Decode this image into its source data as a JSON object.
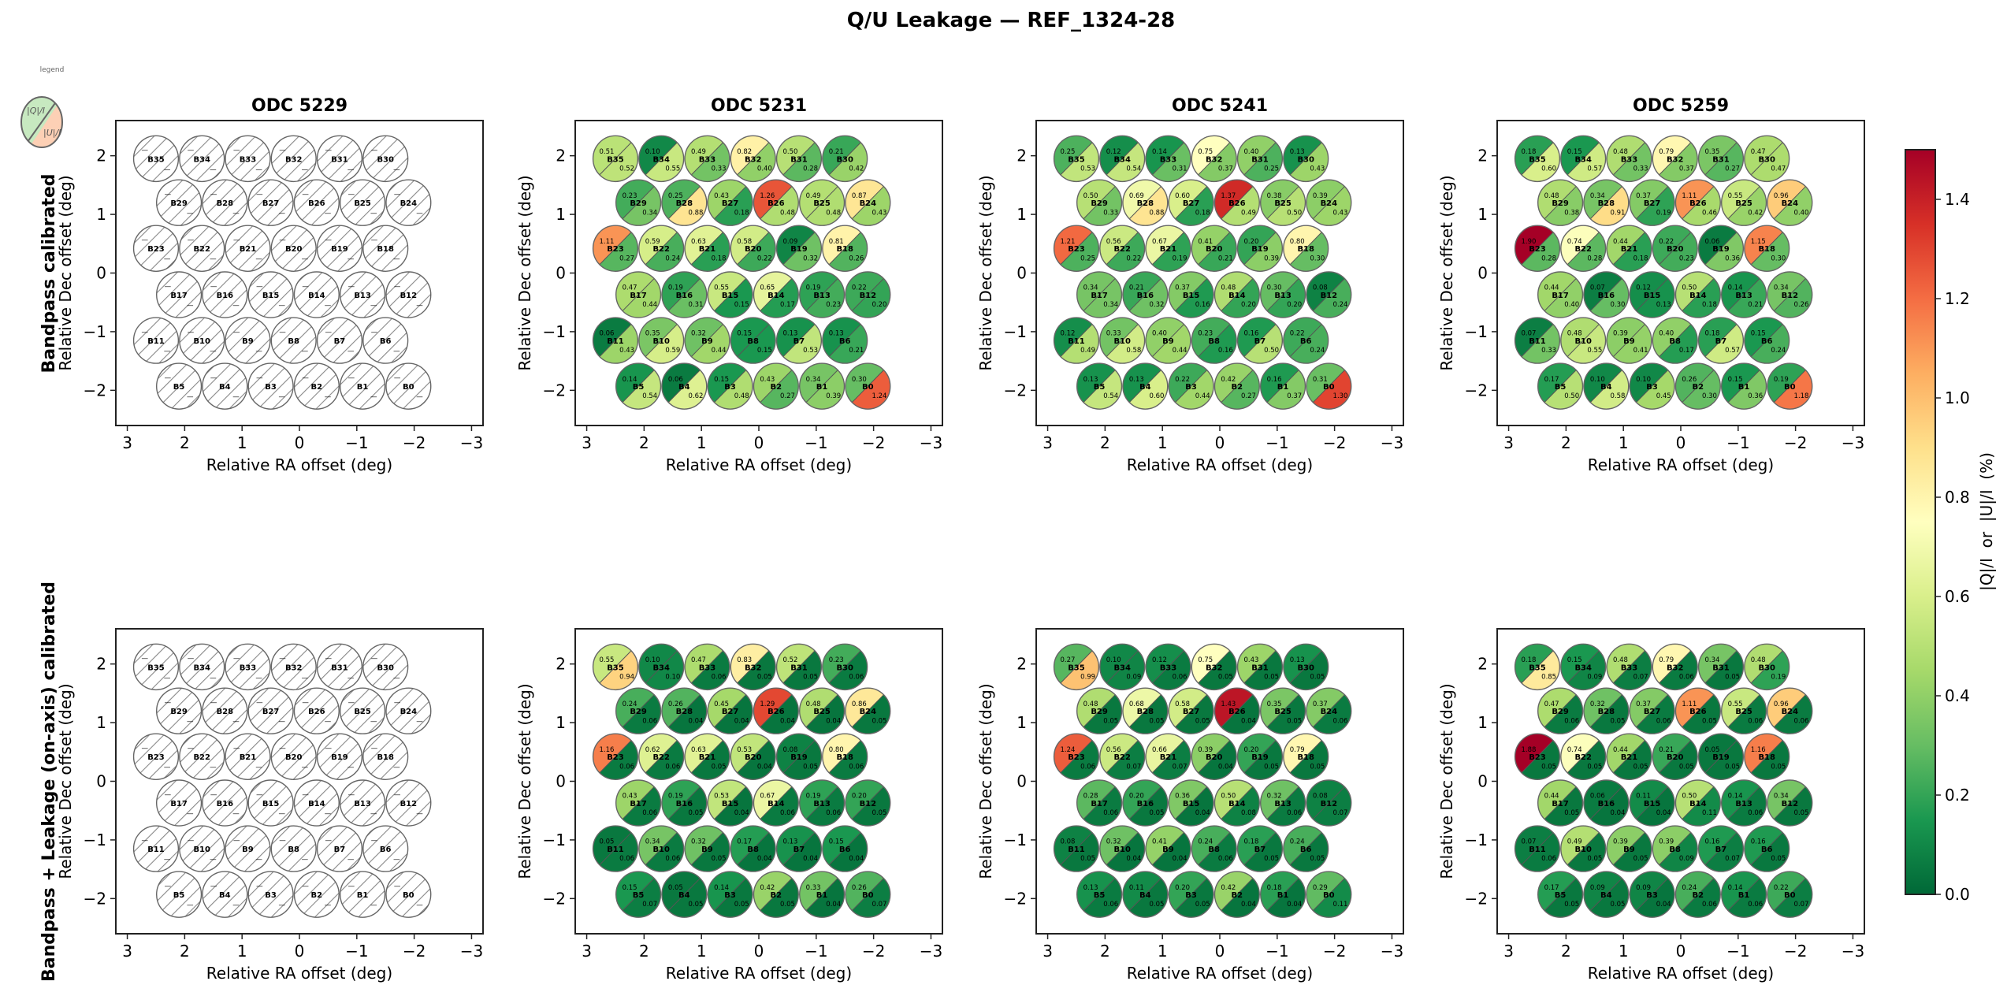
{
  "chart_data": {
    "type": "heatmap",
    "title": "Q/U Leakage — REF_1324-28",
    "xlabel": "Relative RA offset (deg)",
    "ylabel": "Relative Dec offset (deg)",
    "xlim": [
      3.2,
      -3.2
    ],
    "ylim": [
      -2.6,
      2.6
    ],
    "xticks": [
      3,
      2,
      1,
      0,
      -1,
      -2,
      -3
    ],
    "xtick_labels": [
      "3",
      "2",
      "1",
      "0",
      "−1",
      "−2",
      "−3"
    ],
    "yticks": [
      2,
      1,
      0,
      -1,
      -2
    ],
    "ytick_labels": [
      "2",
      "1",
      "0",
      "−1",
      "−2"
    ],
    "row_labels": [
      "Bandpass calibrated",
      "Bandpass + Leakage (on-axis) calibrated"
    ],
    "columns": [
      "ODC 5229",
      "ODC 5231",
      "ODC 5241",
      "ODC 5259"
    ],
    "legend": {
      "label": "legend",
      "upper": "|Q|/I",
      "lower": "|U|/I",
      "upper_color": "#c7e9c0",
      "lower_color": "#fdd0b5",
      "placement": "top-left"
    },
    "colorbar": {
      "label": "|Q|/I  or  |U|/I  (%)",
      "colormap": "RdYlGn_r",
      "range": [
        0.0,
        1.5
      ],
      "ticks": [
        0.0,
        0.2,
        0.4,
        0.6,
        0.8,
        1.0,
        1.2,
        1.4
      ],
      "tick_labels": [
        "0.0",
        "0.2",
        "0.4",
        "0.6",
        "0.8",
        "1.0",
        "1.2",
        "1.4"
      ],
      "placement": "right"
    },
    "missing_marker": "—",
    "beam_order": [
      "B35",
      "B34",
      "B33",
      "B32",
      "B31",
      "B30",
      "B29",
      "B28",
      "B27",
      "B26",
      "B25",
      "B24",
      "B23",
      "B22",
      "B21",
      "B20",
      "B19",
      "B18",
      "B17",
      "B16",
      "B15",
      "B14",
      "B13",
      "B12",
      "B11",
      "B10",
      "B9",
      "B8",
      "B7",
      "B6",
      "B5",
      "B4",
      "B3",
      "B2",
      "B1",
      "B0"
    ],
    "beam_positions": {
      "B35": [
        2.5,
        1.95
      ],
      "B34": [
        1.7,
        1.95
      ],
      "B33": [
        0.9,
        1.95
      ],
      "B32": [
        0.1,
        1.95
      ],
      "B31": [
        -0.7,
        1.95
      ],
      "B30": [
        -1.5,
        1.95
      ],
      "B29": [
        2.1,
        1.2
      ],
      "B28": [
        1.3,
        1.2
      ],
      "B27": [
        0.5,
        1.2
      ],
      "B26": [
        -0.3,
        1.2
      ],
      "B25": [
        -1.1,
        1.2
      ],
      "B24": [
        -1.9,
        1.2
      ],
      "B23": [
        2.5,
        0.42
      ],
      "B22": [
        1.7,
        0.42
      ],
      "B21": [
        0.9,
        0.42
      ],
      "B20": [
        0.1,
        0.42
      ],
      "B19": [
        -0.7,
        0.42
      ],
      "B18": [
        -1.5,
        0.42
      ],
      "B17": [
        2.1,
        -0.37
      ],
      "B16": [
        1.3,
        -0.37
      ],
      "B15": [
        0.5,
        -0.37
      ],
      "B14": [
        -0.3,
        -0.37
      ],
      "B13": [
        -1.1,
        -0.37
      ],
      "B12": [
        -1.9,
        -0.37
      ],
      "B11": [
        2.5,
        -1.15
      ],
      "B10": [
        1.7,
        -1.15
      ],
      "B9": [
        0.9,
        -1.15
      ],
      "B8": [
        0.1,
        -1.15
      ],
      "B7": [
        -0.7,
        -1.15
      ],
      "B6": [
        -1.5,
        -1.15
      ],
      "B5": [
        2.1,
        -1.93
      ],
      "B4": [
        1.3,
        -1.93
      ],
      "B3": [
        0.5,
        -1.93
      ],
      "B2": [
        -0.3,
        -1.93
      ],
      "B1": [
        -1.1,
        -1.93
      ],
      "B0": [
        -1.9,
        -1.93
      ]
    },
    "panels": [
      {
        "row": 0,
        "col": 0,
        "odc": "ODC 5229",
        "has_data": false,
        "q": null,
        "u": null
      },
      {
        "row": 0,
        "col": 1,
        "odc": "ODC 5231",
        "has_data": true,
        "q": {
          "B35": 0.51,
          "B34": 0.1,
          "B33": 0.49,
          "B32": 0.82,
          "B31": 0.5,
          "B30": 0.21,
          "B29": 0.23,
          "B28": 0.25,
          "B27": 0.43,
          "B26": 1.26,
          "B25": 0.49,
          "B24": 0.87,
          "B23": 1.11,
          "B22": 0.59,
          "B21": 0.63,
          "B20": 0.58,
          "B19": 0.09,
          "B18": 0.81,
          "B17": 0.47,
          "B16": 0.19,
          "B15": 0.55,
          "B14": 0.65,
          "B13": 0.19,
          "B12": 0.22,
          "B11": 0.06,
          "B10": 0.35,
          "B9": 0.32,
          "B8": 0.15,
          "B7": 0.13,
          "B6": 0.13,
          "B5": 0.14,
          "B4": 0.06,
          "B3": 0.15,
          "B2": 0.43,
          "B1": 0.34,
          "B0": 0.3
        },
        "u": {
          "B35": 0.52,
          "B34": 0.55,
          "B33": 0.33,
          "B32": 0.4,
          "B31": 0.28,
          "B30": 0.42,
          "B29": 0.34,
          "B28": 0.88,
          "B27": 0.18,
          "B26": 0.48,
          "B25": 0.48,
          "B24": 0.43,
          "B23": 0.27,
          "B22": 0.24,
          "B21": 0.18,
          "B20": 0.22,
          "B19": 0.32,
          "B18": 0.26,
          "B17": 0.44,
          "B16": 0.31,
          "B15": 0.15,
          "B14": 0.17,
          "B13": 0.23,
          "B12": 0.2,
          "B11": 0.43,
          "B10": 0.59,
          "B9": 0.44,
          "B8": 0.15,
          "B7": 0.53,
          "B6": 0.21,
          "B5": 0.54,
          "B4": 0.62,
          "B3": 0.48,
          "B2": 0.27,
          "B1": 0.39,
          "B0": 1.24
        }
      },
      {
        "row": 0,
        "col": 2,
        "odc": "ODC 5241",
        "has_data": true,
        "q": {
          "B35": 0.25,
          "B34": 0.12,
          "B33": 0.14,
          "B32": 0.75,
          "B31": 0.4,
          "B30": 0.13,
          "B29": 0.5,
          "B28": 0.69,
          "B27": 0.6,
          "B26": 1.37,
          "B25": 0.38,
          "B24": 0.39,
          "B23": 1.21,
          "B22": 0.56,
          "B21": 0.67,
          "B20": 0.41,
          "B19": 0.2,
          "B18": 0.8,
          "B17": 0.34,
          "B16": 0.21,
          "B15": 0.37,
          "B14": 0.48,
          "B13": 0.3,
          "B12": 0.08,
          "B11": 0.12,
          "B10": 0.33,
          "B9": 0.4,
          "B8": 0.23,
          "B7": 0.16,
          "B6": 0.22,
          "B5": 0.13,
          "B4": 0.13,
          "B3": 0.22,
          "B2": 0.42,
          "B1": 0.16,
          "B0": 0.31
        },
        "u": {
          "B35": 0.53,
          "B34": 0.54,
          "B33": 0.31,
          "B32": 0.37,
          "B31": 0.25,
          "B30": 0.43,
          "B29": 0.33,
          "B28": 0.88,
          "B27": 0.18,
          "B26": 0.49,
          "B25": 0.5,
          "B24": 0.43,
          "B23": 0.25,
          "B22": 0.22,
          "B21": 0.19,
          "B20": 0.21,
          "B19": 0.39,
          "B18": 0.3,
          "B17": 0.34,
          "B16": 0.32,
          "B15": 0.16,
          "B14": 0.2,
          "B13": 0.2,
          "B12": 0.24,
          "B11": 0.49,
          "B10": 0.58,
          "B9": 0.44,
          "B8": 0.16,
          "B7": 0.5,
          "B6": 0.24,
          "B5": 0.54,
          "B4": 0.6,
          "B3": 0.44,
          "B2": 0.27,
          "B1": 0.37,
          "B0": 1.3
        }
      },
      {
        "row": 0,
        "col": 3,
        "odc": "ODC 5259",
        "has_data": true,
        "q": {
          "B35": 0.18,
          "B34": 0.15,
          "B33": 0.48,
          "B32": 0.79,
          "B31": 0.35,
          "B30": 0.47,
          "B29": 0.48,
          "B28": 0.34,
          "B27": 0.37,
          "B26": 1.11,
          "B25": 0.55,
          "B24": 0.96,
          "B23": 1.9,
          "B22": 0.74,
          "B21": 0.44,
          "B20": 0.22,
          "B19": 0.06,
          "B18": 1.15,
          "B17": 0.44,
          "B16": 0.07,
          "B15": 0.12,
          "B14": 0.5,
          "B13": 0.14,
          "B12": 0.34,
          "B11": 0.07,
          "B10": 0.48,
          "B9": 0.39,
          "B8": 0.4,
          "B7": 0.18,
          "B6": 0.15,
          "B5": 0.17,
          "B4": 0.1,
          "B3": 0.1,
          "B2": 0.26,
          "B1": 0.15,
          "B0": 0.19
        },
        "u": {
          "B35": 0.6,
          "B34": 0.57,
          "B33": 0.33,
          "B32": 0.37,
          "B31": 0.27,
          "B30": 0.47,
          "B29": 0.38,
          "B28": 0.91,
          "B27": 0.19,
          "B26": 0.46,
          "B25": 0.42,
          "B24": 0.4,
          "B23": 0.28,
          "B22": 0.28,
          "B21": 0.18,
          "B20": 0.23,
          "B19": 0.36,
          "B18": 0.3,
          "B17": 0.4,
          "B16": 0.3,
          "B15": 0.13,
          "B14": 0.18,
          "B13": 0.21,
          "B12": 0.26,
          "B11": 0.33,
          "B10": 0.55,
          "B9": 0.41,
          "B8": 0.17,
          "B7": 0.57,
          "B6": 0.24,
          "B5": 0.5,
          "B4": 0.58,
          "B3": 0.45,
          "B2": 0.3,
          "B1": 0.36,
          "B0": 1.18
        }
      },
      {
        "row": 1,
        "col": 0,
        "odc": "ODC 5229",
        "has_data": false,
        "q": null,
        "u": null
      },
      {
        "row": 1,
        "col": 1,
        "odc": "ODC 5231",
        "has_data": true,
        "q": {
          "B35": 0.55,
          "B34": 0.1,
          "B33": 0.47,
          "B32": 0.83,
          "B31": 0.52,
          "B30": 0.23,
          "B29": 0.24,
          "B28": 0.26,
          "B27": 0.45,
          "B26": 1.29,
          "B25": 0.48,
          "B24": 0.86,
          "B23": 1.16,
          "B22": 0.62,
          "B21": 0.63,
          "B20": 0.53,
          "B19": 0.08,
          "B18": 0.8,
          "B17": 0.43,
          "B16": 0.19,
          "B15": 0.53,
          "B14": 0.67,
          "B13": 0.19,
          "B12": 0.2,
          "B11": 0.05,
          "B10": 0.34,
          "B9": 0.32,
          "B8": 0.17,
          "B7": 0.13,
          "B6": 0.15,
          "B5": 0.15,
          "B4": 0.05,
          "B3": 0.14,
          "B2": 0.42,
          "B1": 0.33,
          "B0": 0.26
        },
        "u": {
          "B35": 0.94,
          "B34": 0.1,
          "B33": 0.06,
          "B32": 0.05,
          "B31": 0.05,
          "B30": 0.06,
          "B29": 0.06,
          "B28": 0.04,
          "B27": 0.04,
          "B26": 0.04,
          "B25": 0.04,
          "B24": 0.05,
          "B23": 0.06,
          "B22": 0.06,
          "B21": 0.05,
          "B20": 0.04,
          "B19": 0.05,
          "B18": 0.06,
          "B17": 0.06,
          "B16": 0.05,
          "B15": 0.04,
          "B14": 0.06,
          "B13": 0.06,
          "B12": 0.05,
          "B11": 0.06,
          "B10": 0.06,
          "B9": 0.05,
          "B8": 0.04,
          "B7": 0.04,
          "B6": 0.04,
          "B5": 0.07,
          "B4": 0.05,
          "B3": 0.05,
          "B2": 0.05,
          "B1": 0.04,
          "B0": 0.07
        }
      },
      {
        "row": 1,
        "col": 2,
        "odc": "ODC 5241",
        "has_data": true,
        "q": {
          "B35": 0.27,
          "B34": 0.1,
          "B33": 0.12,
          "B32": 0.75,
          "B31": 0.43,
          "B30": 0.13,
          "B29": 0.48,
          "B28": 0.68,
          "B27": 0.58,
          "B26": 1.43,
          "B25": 0.35,
          "B24": 0.37,
          "B23": 1.24,
          "B22": 0.56,
          "B21": 0.66,
          "B20": 0.39,
          "B19": 0.2,
          "B18": 0.79,
          "B17": 0.28,
          "B16": 0.2,
          "B15": 0.36,
          "B14": 0.5,
          "B13": 0.32,
          "B12": 0.08,
          "B11": 0.08,
          "B10": 0.32,
          "B9": 0.41,
          "B8": 0.24,
          "B7": 0.18,
          "B6": 0.24,
          "B5": 0.13,
          "B4": 0.11,
          "B3": 0.2,
          "B2": 0.42,
          "B1": 0.18,
          "B0": 0.29
        },
        "u": {
          "B35": 0.99,
          "B34": 0.09,
          "B33": 0.06,
          "B32": 0.05,
          "B31": 0.05,
          "B30": 0.05,
          "B29": 0.05,
          "B28": 0.05,
          "B27": 0.05,
          "B26": 0.04,
          "B25": 0.05,
          "B24": 0.06,
          "B23": 0.06,
          "B22": 0.07,
          "B21": 0.07,
          "B20": 0.04,
          "B19": 0.05,
          "B18": 0.05,
          "B17": 0.06,
          "B16": 0.05,
          "B15": 0.04,
          "B14": 0.08,
          "B13": 0.06,
          "B12": 0.07,
          "B11": 0.05,
          "B10": 0.04,
          "B9": 0.04,
          "B8": 0.06,
          "B7": 0.05,
          "B6": 0.05,
          "B5": 0.06,
          "B4": 0.05,
          "B3": 0.05,
          "B2": 0.04,
          "B1": 0.04,
          "B0": 0.11
        }
      },
      {
        "row": 1,
        "col": 3,
        "odc": "ODC 5259",
        "has_data": true,
        "q": {
          "B35": 0.18,
          "B34": 0.15,
          "B33": 0.48,
          "B32": 0.79,
          "B31": 0.34,
          "B30": 0.48,
          "B29": 0.47,
          "B28": 0.32,
          "B27": 0.37,
          "B26": 1.11,
          "B25": 0.55,
          "B24": 0.96,
          "B23": 1.88,
          "B22": 0.74,
          "B21": 0.44,
          "B20": 0.21,
          "B19": 0.05,
          "B18": 1.16,
          "B17": 0.44,
          "B16": 0.06,
          "B15": 0.11,
          "B14": 0.5,
          "B13": 0.14,
          "B12": 0.34,
          "B11": 0.07,
          "B10": 0.49,
          "B9": 0.39,
          "B8": 0.39,
          "B7": 0.16,
          "B6": 0.16,
          "B5": 0.17,
          "B4": 0.09,
          "B3": 0.09,
          "B2": 0.24,
          "B1": 0.14,
          "B0": 0.22
        },
        "u": {
          "B35": 0.85,
          "B34": 0.09,
          "B33": 0.07,
          "B32": 0.06,
          "B31": 0.05,
          "B30": 0.19,
          "B29": 0.06,
          "B28": 0.05,
          "B27": 0.06,
          "B26": 0.05,
          "B25": 0.06,
          "B24": 0.06,
          "B23": 0.05,
          "B22": 0.05,
          "B21": 0.05,
          "B20": 0.05,
          "B19": 0.05,
          "B18": 0.05,
          "B17": 0.05,
          "B16": 0.04,
          "B15": 0.04,
          "B14": 0.11,
          "B13": 0.06,
          "B12": 0.05,
          "B11": 0.06,
          "B10": 0.05,
          "B9": 0.05,
          "B8": 0.09,
          "B7": 0.07,
          "B6": 0.05,
          "B5": 0.05,
          "B4": 0.05,
          "B3": 0.04,
          "B2": 0.06,
          "B1": 0.06,
          "B0": 0.07
        }
      }
    ]
  }
}
